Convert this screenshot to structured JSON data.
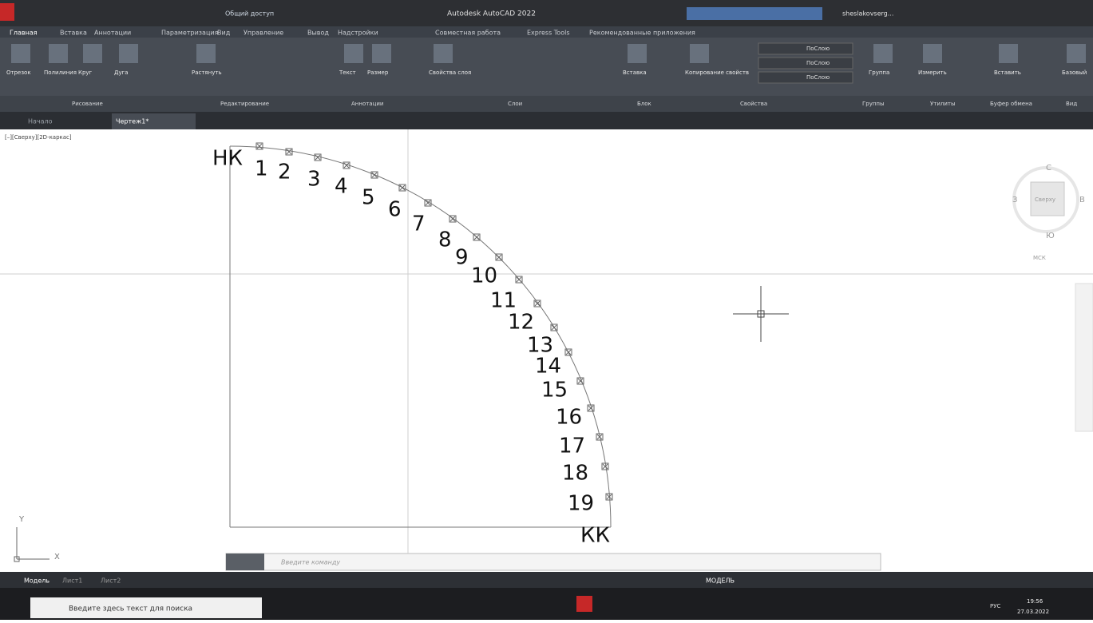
{
  "titlebar": {
    "title": "Autodesk AutoCAD 2022",
    "share": "Общий доступ",
    "user": "sheslakovserg..."
  },
  "ribbon": {
    "tabs": [
      "Главная",
      "Вставка",
      "Аннотации",
      "Параметризация",
      "Вид",
      "Управление",
      "Вывод",
      "Надстройки",
      "Совместная работа",
      "Express Tools",
      "Рекомендованные приложения"
    ],
    "buttons": [
      "Отрезок",
      "Полилиния",
      "Круг",
      "Дуга",
      "Растянуть",
      "Текст",
      "Размер",
      "Свойства слоя",
      "Вставка",
      "Копирование свойств",
      "Группа",
      "Измерить",
      "Вставить",
      "Базовый"
    ],
    "panels": [
      "Рисование",
      "Редактирование",
      "Аннотации",
      "Слои",
      "Блок",
      "Свойства",
      "Группы",
      "Утилиты",
      "Буфер обмена",
      "Вид"
    ],
    "bylayer": [
      "ПоСлою",
      "ПоСлою",
      "ПоСлою"
    ]
  },
  "file_tabs": [
    "Начало",
    "Чертеж1*"
  ],
  "viewport": {
    "label": "[–][Сверху][2D-каркас]"
  },
  "viewcube": {
    "north": "С",
    "west": "З",
    "top": "Сверху",
    "east": "В",
    "south": "Ю",
    "ucs": "МСК"
  },
  "drawing": {
    "start": "НК",
    "end": "КК",
    "points": [
      "1",
      "2",
      "3",
      "4",
      "5",
      "6",
      "7",
      "8",
      "9",
      "10",
      "11",
      "12",
      "13",
      "14",
      "15",
      "16",
      "17",
      "18",
      "19"
    ]
  },
  "ucs_icon": {
    "x": "X",
    "y": "Y"
  },
  "command_prompt": "Введите команду",
  "layout_tabs": [
    "Модель",
    "Лист1",
    "Лист2"
  ],
  "status": {
    "model": "МОДЕЛЬ"
  },
  "taskbar": {
    "search": "Введите здесь текст для поиска",
    "lang": "РУС",
    "time": "19:56",
    "date": "27.03.2022"
  }
}
